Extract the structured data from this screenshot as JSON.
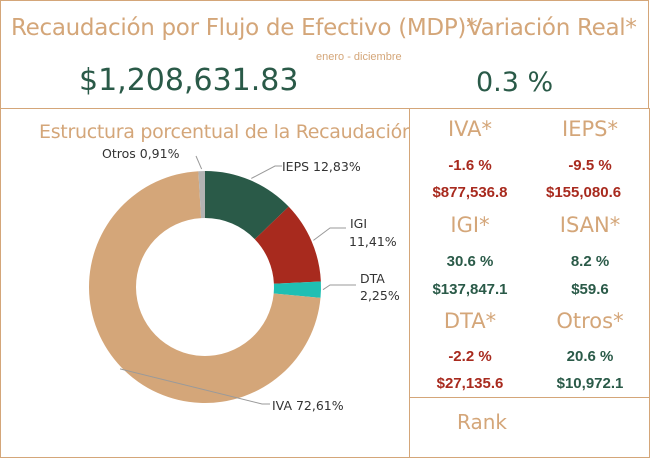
{
  "header": {
    "recaudacion_title": "Recaudación por Flujo de Efectivo (MDP)*",
    "period": "enero - diciembre",
    "recaudacion_value": "$1,208,631.83",
    "variacion_title": "Variación Real*",
    "variacion_value": "0.3 %"
  },
  "chart_panel": {
    "title": "Estructura porcentual de la Recaudación"
  },
  "chart_data": {
    "type": "pie",
    "title": "Estructura porcentual de la Recaudación",
    "slices": [
      {
        "label": "IEPS",
        "display": "IEPS 12,83%",
        "value": 12.83,
        "color": "#2a5a48"
      },
      {
        "label": "IGI",
        "display": "IGI 11,41%",
        "value": 11.41,
        "color": "#a82a1e"
      },
      {
        "label": "DTA",
        "display": "DTA 2,25%",
        "value": 2.25,
        "color": "#1fbfb3"
      },
      {
        "label": "IVA",
        "display": "IVA 72,61%",
        "value": 72.61,
        "color": "#d4a679"
      },
      {
        "label": "Otros",
        "display": "Otros 0,91%",
        "value": 0.91,
        "color": "#b3b3b3"
      }
    ]
  },
  "labels": {
    "ieps": "IEPS 12,83%",
    "igi_name": "IGI",
    "igi_pct": "11,41%",
    "dta_name": "DTA",
    "dta_pct": "2,25%",
    "iva": "IVA 72,61%",
    "otros": "Otros 0,91%"
  },
  "metrics": [
    {
      "name": "IVA*",
      "pct": "-1.6 %",
      "amount": "$877,536.8",
      "tone": "red"
    },
    {
      "name": "IEPS*",
      "pct": "-9.5 %",
      "amount": "$155,080.6",
      "tone": "red"
    },
    {
      "name": "IGI*",
      "pct": "30.6 %",
      "amount": "$137,847.1",
      "tone": "green"
    },
    {
      "name": "ISAN*",
      "pct": "8.2 %",
      "amount": "$59.6",
      "tone": "green"
    },
    {
      "name": "DTA*",
      "pct": "-2.2 %",
      "amount": "$27,135.6",
      "tone": "red"
    },
    {
      "name": "Otros*",
      "pct": "20.6 %",
      "amount": "$10,972.1",
      "tone": "green"
    }
  ],
  "rank": {
    "label": "Rank"
  }
}
